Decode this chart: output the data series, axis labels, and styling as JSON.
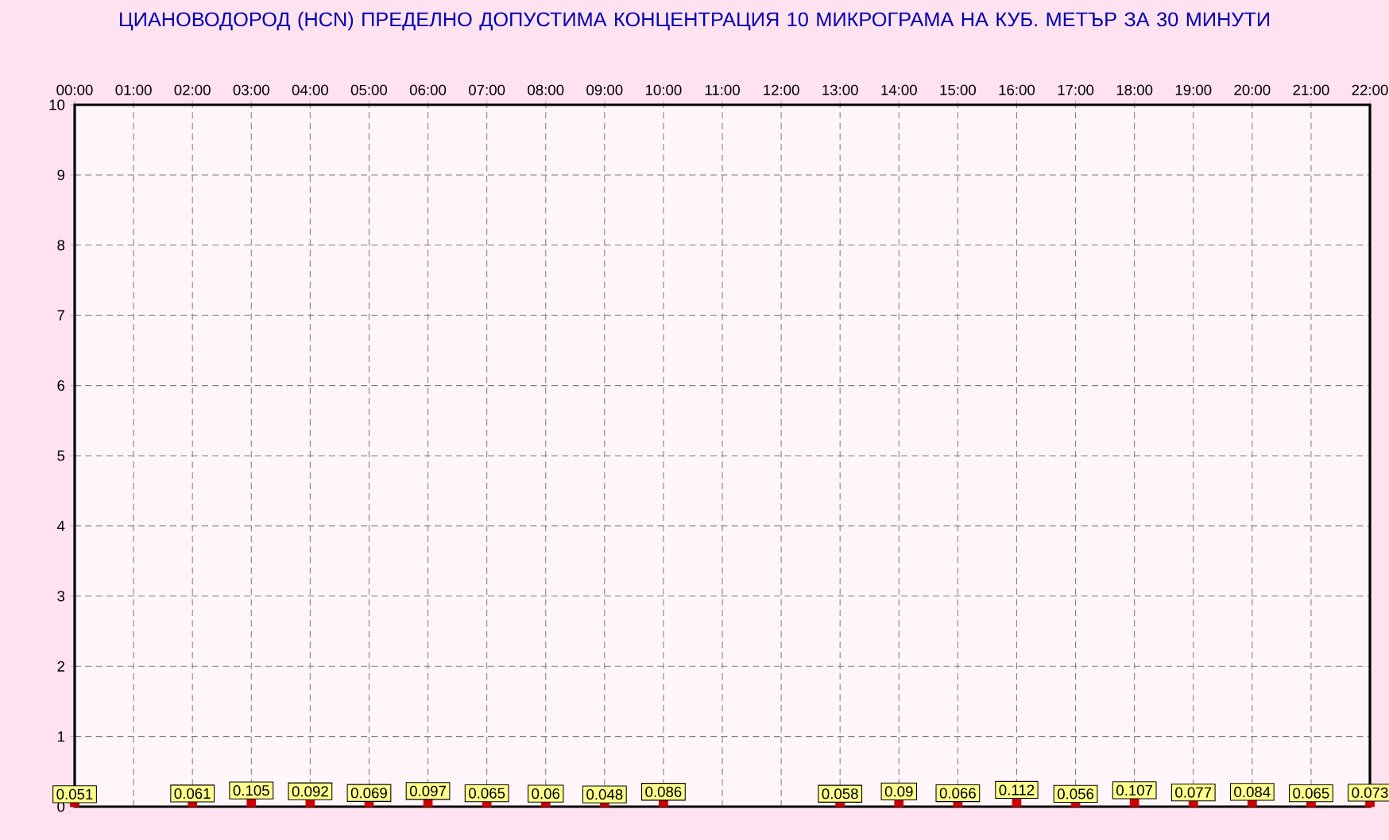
{
  "chart_data": {
    "type": "bar",
    "title": "ЦИАНОВОДОРОД     (HCN)    ПРЕДЕЛНО ДОПУСТИМА КОНЦЕНТРАЦИЯ 10 МИКРОГРАМА  НА КУБ. МЕТЪР ЗА 30 МИНУТИ",
    "categories": [
      "00:00",
      "01:00",
      "02:00",
      "03:00",
      "04:00",
      "05:00",
      "06:00",
      "07:00",
      "08:00",
      "09:00",
      "10:00",
      "11:00",
      "12:00",
      "13:00",
      "14:00",
      "15:00",
      "16:00",
      "17:00",
      "18:00",
      "19:00",
      "20:00",
      "21:00",
      "22:00"
    ],
    "values": [
      0.051,
      null,
      0.061,
      0.105,
      0.092,
      0.069,
      0.097,
      0.065,
      0.06,
      0.048,
      0.086,
      null,
      null,
      0.058,
      0.09,
      0.066,
      0.112,
      0.056,
      0.107,
      0.077,
      0.084,
      0.065,
      0.073
    ],
    "color": "#cc0000",
    "ylim": [
      0,
      10
    ],
    "yticks": [
      0,
      1,
      2,
      3,
      4,
      5,
      6,
      7,
      8,
      9,
      10
    ],
    "grid": true,
    "data_labels": true
  }
}
